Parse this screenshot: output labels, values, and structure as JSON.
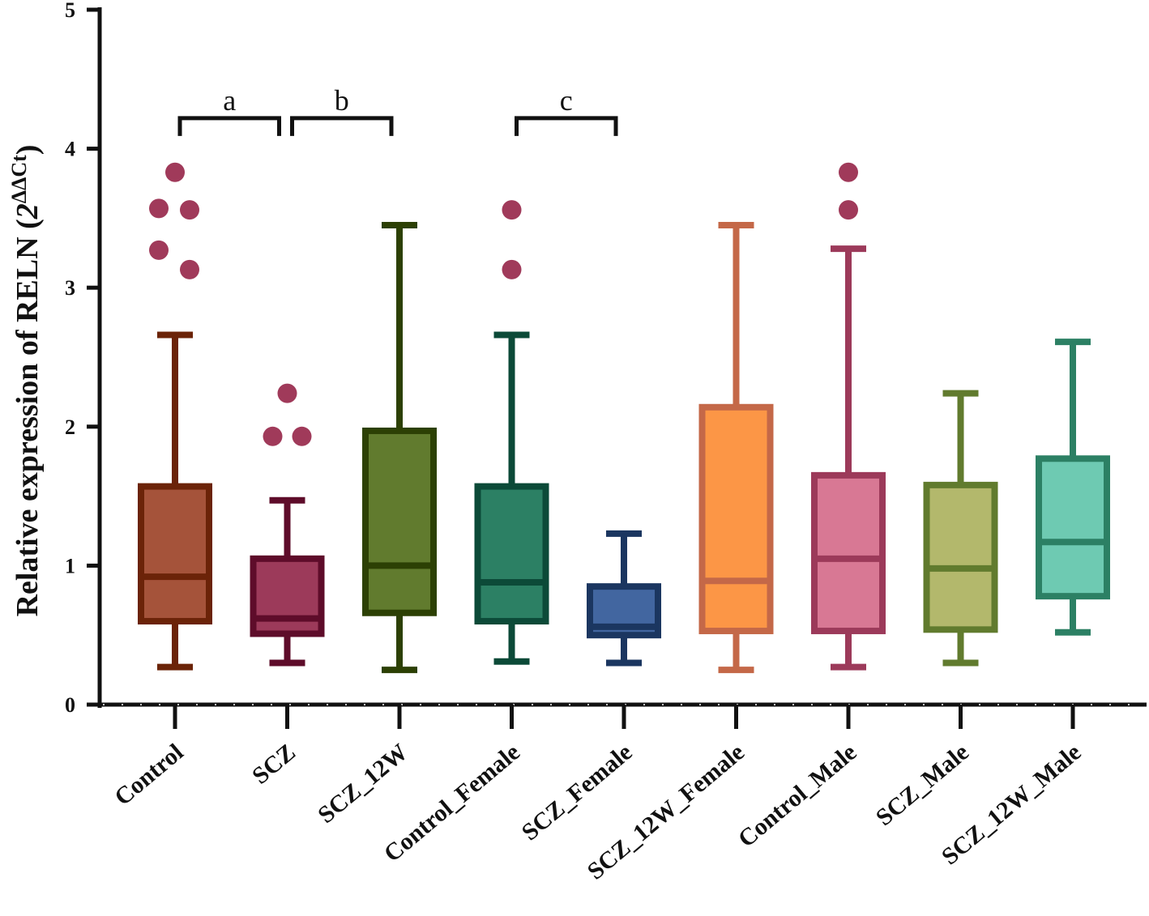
{
  "chart_data": {
    "type": "box",
    "title": "",
    "xlabel": "",
    "ylabel": "Relative expression of RELN (",
    "ylabel_formula": {
      "base": "2",
      "sup": "ΔΔCt"
    },
    "ylabel_close": ")",
    "ylim": [
      0,
      5
    ],
    "yticks": [
      "0",
      "1",
      "2",
      "3",
      "4",
      "5"
    ],
    "categories": [
      "Control",
      "SCZ",
      "SCZ_12W",
      "Control_Female",
      "SCZ_Female",
      "SCZ_12W_Female",
      "Control_Male",
      "SCZ_Male",
      "SCZ_12W_Male"
    ],
    "series": [
      {
        "name": "Control",
        "whisker_low": 0.27,
        "q1": 0.6,
        "median": 0.92,
        "q3": 1.57,
        "whisker_high": 2.66,
        "outliers": [
          3.83,
          3.57,
          3.56,
          3.27,
          3.13
        ],
        "fill": "#a5533a",
        "stroke": "#6b2308"
      },
      {
        "name": "SCZ",
        "whisker_low": 0.3,
        "q1": 0.51,
        "median": 0.62,
        "q3": 1.05,
        "whisker_high": 1.47,
        "outliers": [
          2.24,
          1.93,
          1.93
        ],
        "fill": "#9c3a5a",
        "stroke": "#5e0c2a"
      },
      {
        "name": "SCZ_12W",
        "whisker_low": 0.25,
        "q1": 0.66,
        "median": 1.0,
        "q3": 1.97,
        "whisker_high": 3.45,
        "outliers": [],
        "fill": "#617b2e",
        "stroke": "#2c4004"
      },
      {
        "name": "Control_Female",
        "whisker_low": 0.31,
        "q1": 0.6,
        "median": 0.88,
        "q3": 1.57,
        "whisker_high": 2.66,
        "outliers": [
          3.56,
          3.13
        ],
        "fill": "#2c8064",
        "stroke": "#0c4a38"
      },
      {
        "name": "SCZ_Female",
        "whisker_low": 0.3,
        "q1": 0.5,
        "median": 0.56,
        "q3": 0.85,
        "whisker_high": 1.23,
        "outliers": [],
        "fill": "#4266a0",
        "stroke": "#1b3660"
      },
      {
        "name": "SCZ_12W_Female",
        "whisker_low": 0.25,
        "q1": 0.53,
        "median": 0.89,
        "q3": 2.14,
        "whisker_high": 3.45,
        "outliers": [],
        "fill": "#fc9646",
        "stroke": "#c46848"
      },
      {
        "name": "Control_Male",
        "whisker_low": 0.27,
        "q1": 0.53,
        "median": 1.05,
        "q3": 1.65,
        "whisker_high": 3.28,
        "outliers": [
          3.83,
          3.56
        ],
        "fill": "#d87894",
        "stroke": "#9c3a5a"
      },
      {
        "name": "SCZ_Male",
        "whisker_low": 0.3,
        "q1": 0.54,
        "median": 0.98,
        "q3": 1.58,
        "whisker_high": 2.24,
        "outliers": [],
        "fill": "#b3b86c",
        "stroke": "#617b2e"
      },
      {
        "name": "SCZ_12W_Male",
        "whisker_low": 0.52,
        "q1": 0.78,
        "median": 1.17,
        "q3": 1.77,
        "whisker_high": 2.61,
        "outliers": [],
        "fill": "#6ecab2",
        "stroke": "#2c8064"
      }
    ],
    "outlier_color": "#a03a5a",
    "significance": [
      {
        "label": "a",
        "from": 0,
        "to": 1,
        "y": 4.22
      },
      {
        "label": "b",
        "from": 1,
        "to": 2,
        "y": 4.22
      },
      {
        "label": "c",
        "from": 3,
        "to": 4,
        "y": 4.22
      }
    ]
  }
}
